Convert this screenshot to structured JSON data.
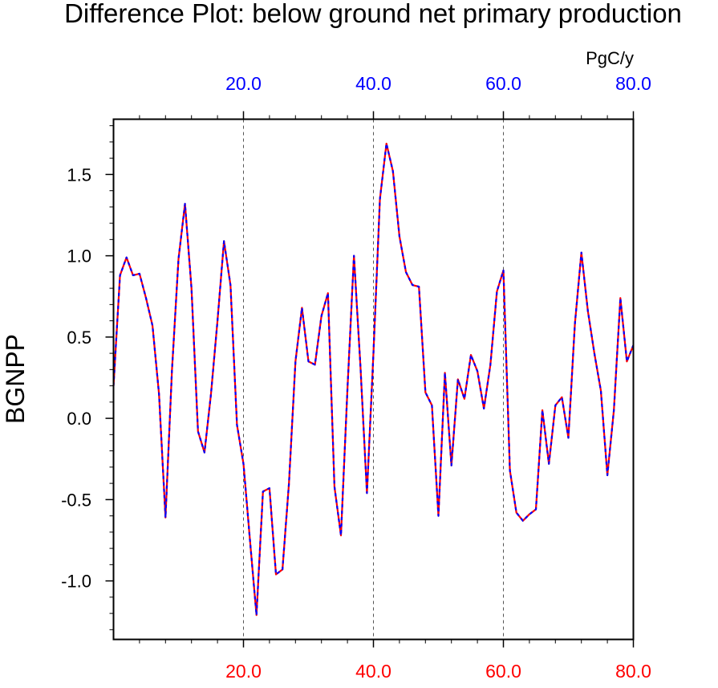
{
  "title": "Difference Plot: below ground net primary production",
  "units": "PgC/y",
  "colors": {
    "top_axis": "#0000ff",
    "bottom_axis": "#ff0000",
    "line_red": "#ff0000",
    "line_blue": "#0000ff",
    "grid": "#555555"
  },
  "chart_data": {
    "type": "line",
    "title": "Difference Plot: below ground net primary production",
    "ylabel": "BGNPP",
    "xlabel": "",
    "units": "PgC/y",
    "xlim": [
      0,
      80
    ],
    "ylim": [
      -1.36,
      1.84
    ],
    "x_ticks": [
      20,
      40,
      60,
      80
    ],
    "x_tick_labels": [
      "20.0",
      "40.0",
      "60.0",
      "80.0"
    ],
    "y_ticks": [
      -1.0,
      -0.5,
      0.0,
      0.5,
      1.0,
      1.5
    ],
    "y_tick_labels": [
      "-1.0",
      "-0.5",
      "0.0",
      "0.5",
      "1.0",
      "1.5"
    ],
    "grid": "vertical dashed at x ticks",
    "top_axis_color": "blue",
    "bottom_axis_color": "red",
    "series": [
      {
        "style": "red solid line overlaid with blue dashed line",
        "x": [
          0,
          1,
          2,
          3,
          4,
          5,
          6,
          7,
          8,
          9,
          10,
          11,
          12,
          13,
          14,
          15,
          16,
          17,
          18,
          19,
          20,
          21,
          22,
          23,
          24,
          25,
          26,
          27,
          28,
          29,
          30,
          31,
          32,
          33,
          34,
          35,
          36,
          37,
          38,
          39,
          40,
          41,
          42,
          43,
          44,
          45,
          46,
          47,
          48,
          49,
          50,
          51,
          52,
          53,
          54,
          55,
          56,
          57,
          58,
          59,
          60,
          61,
          62,
          63,
          64,
          65,
          66,
          67,
          68,
          69,
          70,
          71,
          72,
          73,
          74,
          75,
          76,
          77,
          78,
          79,
          80
        ],
        "values": [
          0.2,
          0.88,
          0.99,
          0.88,
          0.89,
          0.74,
          0.57,
          0.15,
          -0.61,
          0.3,
          0.98,
          1.32,
          0.8,
          -0.08,
          -0.21,
          0.15,
          0.6,
          1.09,
          0.82,
          -0.04,
          -0.28,
          -0.75,
          -1.21,
          -0.45,
          -0.43,
          -0.96,
          -0.93,
          -0.4,
          0.35,
          0.68,
          0.35,
          0.33,
          0.63,
          0.77,
          -0.42,
          -0.72,
          0.18,
          1.0,
          0.32,
          -0.46,
          0.4,
          1.35,
          1.69,
          1.52,
          1.12,
          0.9,
          0.82,
          0.81,
          0.16,
          0.08,
          -0.6,
          0.28,
          -0.29,
          0.24,
          0.12,
          0.39,
          0.29,
          0.06,
          0.33,
          0.78,
          0.91,
          -0.32,
          -0.58,
          -0.63,
          -0.59,
          -0.56,
          0.05,
          -0.28,
          0.08,
          0.13,
          -0.12,
          0.58,
          1.02,
          0.66,
          0.4,
          0.17,
          -0.35,
          0.05,
          0.74,
          0.35,
          0.45
        ]
      }
    ]
  }
}
